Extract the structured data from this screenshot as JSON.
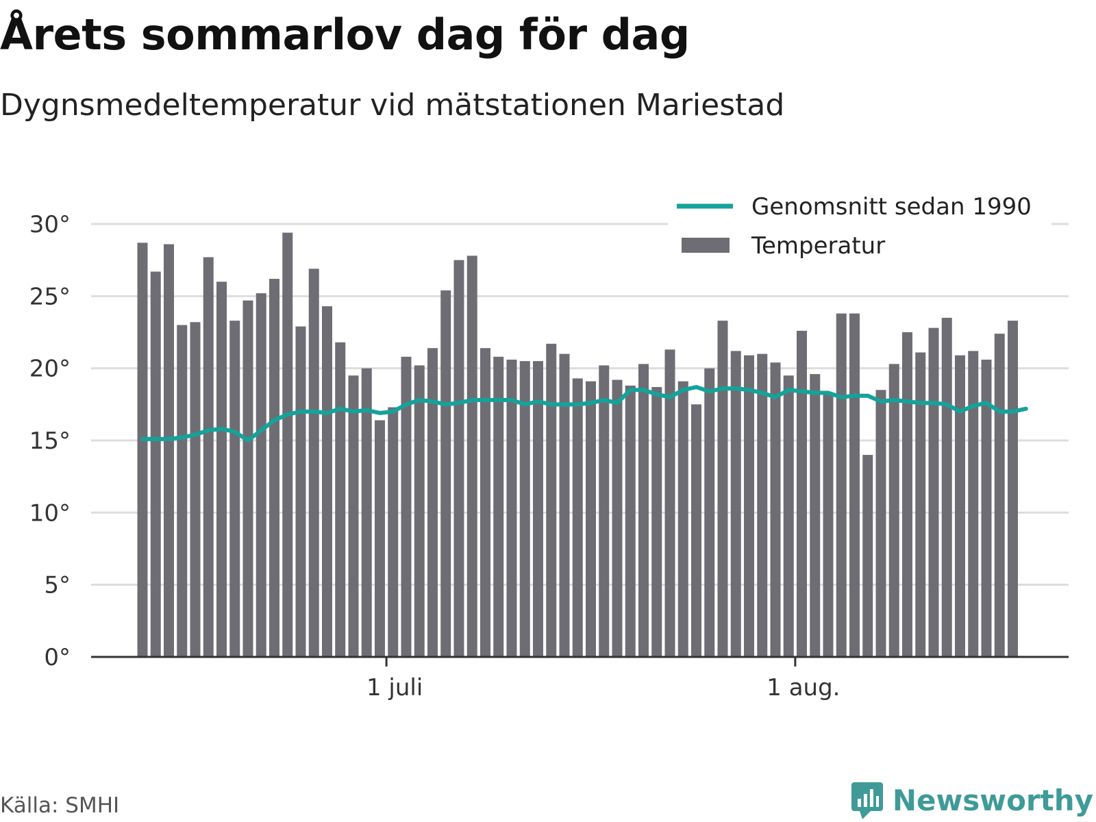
{
  "title": "Årets sommarlov dag för dag",
  "subtitle": "Dygnsmedeltemperatur vid mätstationen Mariestad",
  "source": "Källa: SMHI",
  "brand": {
    "name": "Newsworthy",
    "icon": "newsworthy-logo-icon"
  },
  "colors": {
    "bars": "#6e6d74",
    "average_line": "#14a39a",
    "grid": "#dddddd",
    "axis": "#333333"
  },
  "chart_data": {
    "type": "bar",
    "x_axis": {
      "start_date": "2018-06-12",
      "ticks": [
        {
          "date": "2018-07-01",
          "label": "1 juli"
        },
        {
          "date": "2018-08-01",
          "label": "1 aug."
        }
      ]
    },
    "y_axis": {
      "ticks": [
        {
          "value": 0,
          "label": "0°"
        },
        {
          "value": 5,
          "label": "5°"
        },
        {
          "value": 10,
          "label": "10°"
        },
        {
          "value": 15,
          "label": "15°"
        },
        {
          "value": 20,
          "label": "20°"
        },
        {
          "value": 25,
          "label": "25°"
        },
        {
          "value": 30,
          "label": "30°"
        }
      ],
      "ylim": [
        0,
        30
      ]
    },
    "grid": true,
    "legend_position": "top-right",
    "series": [
      {
        "name": "Temperatur",
        "kind": "bar",
        "values": [
          28.7,
          26.7,
          28.6,
          23.0,
          23.2,
          27.7,
          26.0,
          23.3,
          24.7,
          25.2,
          26.2,
          29.4,
          22.9,
          26.9,
          24.3,
          21.8,
          19.5,
          20.0,
          16.4,
          17.3,
          20.8,
          20.2,
          21.4,
          25.4,
          27.5,
          27.8,
          21.4,
          20.8,
          20.6,
          20.5,
          20.5,
          21.7,
          21.0,
          19.3,
          19.1,
          20.2,
          19.2,
          18.8,
          20.3,
          18.7,
          21.3,
          19.1,
          17.5,
          20.0,
          23.3,
          21.2,
          20.9,
          21.0,
          20.4,
          19.5,
          22.6,
          19.6,
          18.2,
          23.8,
          23.8,
          14.0,
          18.5,
          20.3,
          22.5,
          21.1,
          22.8,
          23.5,
          20.9,
          21.2,
          20.6,
          22.4,
          23.3
        ]
      },
      {
        "name": "Genomsnitt sedan 1990",
        "kind": "line",
        "values": [
          15.1,
          15.1,
          15.1,
          15.2,
          15.4,
          15.7,
          15.8,
          15.6,
          15.0,
          15.7,
          16.4,
          16.8,
          17.0,
          17.0,
          16.9,
          17.2,
          17.0,
          17.1,
          16.9,
          17.0,
          17.5,
          17.8,
          17.7,
          17.5,
          17.6,
          17.8,
          17.8,
          17.8,
          17.8,
          17.5,
          17.7,
          17.5,
          17.5,
          17.5,
          17.6,
          17.8,
          17.6,
          18.5,
          18.5,
          18.2,
          18.0,
          18.5,
          18.7,
          18.4,
          18.6,
          18.6,
          18.5,
          18.3,
          18.0,
          18.5,
          18.4,
          18.3,
          18.3,
          18.0,
          18.1,
          18.1,
          17.7,
          17.8,
          17.7,
          17.6,
          17.6,
          17.5,
          17.0,
          17.4,
          17.6,
          17.0,
          17.0,
          17.2
        ]
      }
    ]
  }
}
